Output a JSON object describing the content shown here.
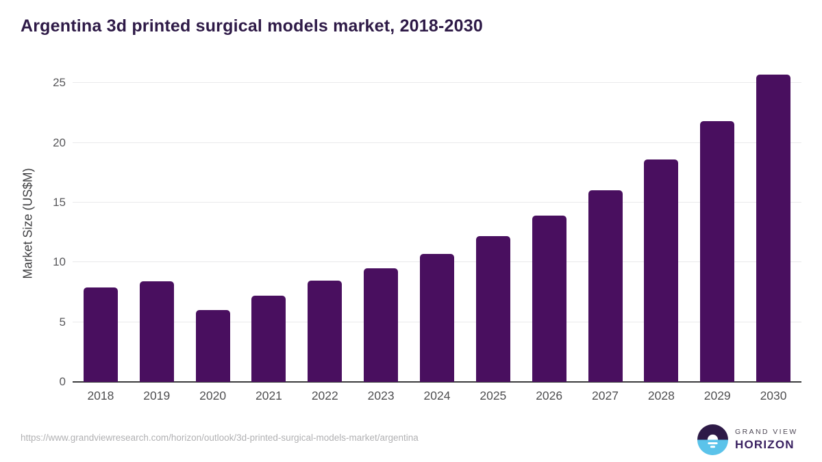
{
  "title": "Argentina 3d printed surgical models market, 2018-2030",
  "chart_data": {
    "type": "bar",
    "title": "Argentina 3d printed surgical models market, 2018-2030",
    "categories": [
      "2018",
      "2019",
      "2020",
      "2021",
      "2022",
      "2023",
      "2024",
      "2025",
      "2026",
      "2027",
      "2028",
      "2029",
      "2030"
    ],
    "values": [
      7.9,
      8.4,
      6.0,
      7.2,
      8.5,
      9.5,
      10.7,
      12.2,
      13.9,
      16.0,
      18.6,
      21.8,
      25.7
    ],
    "xlabel": "",
    "ylabel": "Market Size (US$M)",
    "ylim": [
      0,
      26.5
    ],
    "yticks": [
      0,
      5,
      10,
      15,
      20,
      25
    ],
    "grid": "horizontal",
    "legend": "none",
    "bar_color": "#490f5f"
  },
  "colors": {
    "title_text": "#2e1a47",
    "bar": "#490f5f",
    "gridline": "#e9e9eb",
    "axis_line": "#3a3a3c",
    "tick_text": "#57575a",
    "url_text": "#b1b1b3",
    "logo_dark": "#2e1a47",
    "logo_blue": "#5bc3ea"
  },
  "footer": {
    "source_url": "https://www.grandviewresearch.com/horizon/outlook/3d-printed-surgical-models-market/argentina",
    "logo": {
      "line1": "GRAND VIEW",
      "line2": "HORIZON"
    }
  }
}
